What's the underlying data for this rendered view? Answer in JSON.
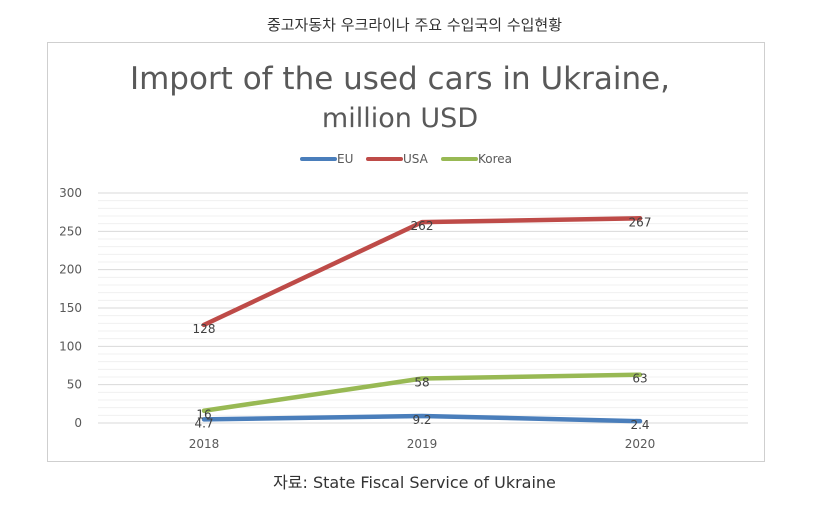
{
  "page": {
    "caption_top": "중고자동차 우크라이나 주요 수입국의 수입현황",
    "caption_bottom": "자료: State Fiscal Service of Ukraine"
  },
  "chart_data": {
    "type": "line",
    "title_line1": "Import of the used cars in Ukraine,",
    "title_line2": "million USD",
    "xlabel": "",
    "ylabel": "",
    "categories": [
      "2018",
      "2019",
      "2020"
    ],
    "ylim": [
      0,
      300
    ],
    "yticks": [
      0,
      50,
      100,
      150,
      200,
      250,
      300
    ],
    "grid": true,
    "legend_position": "top",
    "series": [
      {
        "name": "EU",
        "color": "#4a7ebb",
        "values": [
          4.7,
          9.2,
          2.4
        ],
        "labels": [
          "4.7",
          "9.2",
          "2.4"
        ]
      },
      {
        "name": "USA",
        "color": "#be4b48",
        "values": [
          128,
          262,
          267
        ],
        "labels": [
          "128",
          "262",
          "267"
        ]
      },
      {
        "name": "Korea",
        "color": "#98b954",
        "values": [
          16,
          58,
          63
        ],
        "labels": [
          "16",
          "58",
          "63"
        ]
      }
    ]
  }
}
